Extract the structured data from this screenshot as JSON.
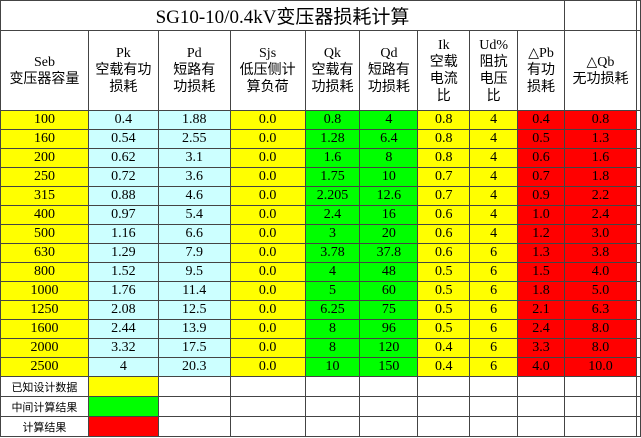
{
  "title": "SG10-10/0.4kV变压器损耗计算",
  "header": [
    [
      "Seb",
      "变压器容量"
    ],
    [
      "Pk",
      "空载有功",
      "损耗"
    ],
    [
      "Pd",
      "短路有",
      "功损耗"
    ],
    [
      "Sjs",
      "低压侧计",
      "算负荷"
    ],
    [
      "Qk",
      "空载有",
      "功损耗"
    ],
    [
      "Qd",
      "短路有",
      "功损耗"
    ],
    [
      "Ik",
      "空载",
      "电流",
      "比"
    ],
    [
      "Ud%",
      "阻抗",
      "电压",
      "比"
    ],
    [
      "△Pb",
      "有功",
      "损耗"
    ],
    [
      "△Qb",
      "无功损耗"
    ]
  ],
  "rows": [
    [
      "100",
      "0.4",
      "1.88",
      "0.0",
      "0.8",
      "4",
      "0.8",
      "4",
      "0.4",
      "0.8"
    ],
    [
      "160",
      "0.54",
      "2.55",
      "0.0",
      "1.28",
      "6.4",
      "0.8",
      "4",
      "0.5",
      "1.3"
    ],
    [
      "200",
      "0.62",
      "3.1",
      "0.0",
      "1.6",
      "8",
      "0.8",
      "4",
      "0.6",
      "1.6"
    ],
    [
      "250",
      "0.72",
      "3.6",
      "0.0",
      "1.75",
      "10",
      "0.7",
      "4",
      "0.7",
      "1.8"
    ],
    [
      "315",
      "0.88",
      "4.6",
      "0.0",
      "2.205",
      "12.6",
      "0.7",
      "4",
      "0.9",
      "2.2"
    ],
    [
      "400",
      "0.97",
      "5.4",
      "0.0",
      "2.4",
      "16",
      "0.6",
      "4",
      "1.0",
      "2.4"
    ],
    [
      "500",
      "1.16",
      "6.6",
      "0.0",
      "3",
      "20",
      "0.6",
      "4",
      "1.2",
      "3.0"
    ],
    [
      "630",
      "1.29",
      "7.9",
      "0.0",
      "3.78",
      "37.8",
      "0.6",
      "6",
      "1.3",
      "3.8"
    ],
    [
      "800",
      "1.52",
      "9.5",
      "0.0",
      "4",
      "48",
      "0.5",
      "6",
      "1.5",
      "4.0"
    ],
    [
      "1000",
      "1.76",
      "11.4",
      "0.0",
      "5",
      "60",
      "0.5",
      "6",
      "1.8",
      "5.0"
    ],
    [
      "1250",
      "2.08",
      "12.5",
      "0.0",
      "6.25",
      "75",
      "0.5",
      "6",
      "2.1",
      "6.3"
    ],
    [
      "1600",
      "2.44",
      "13.9",
      "0.0",
      "8",
      "96",
      "0.5",
      "6",
      "2.4",
      "8.0"
    ],
    [
      "2000",
      "3.32",
      "17.5",
      "0.0",
      "8",
      "120",
      "0.4",
      "6",
      "3.3",
      "8.0"
    ],
    [
      "2500",
      "4",
      "20.3",
      "0.0",
      "10",
      "150",
      "0.4",
      "6",
      "4.0",
      "10.0"
    ]
  ],
  "legend": [
    "已知设计数据",
    "中间计算结果",
    "计算结果"
  ]
}
